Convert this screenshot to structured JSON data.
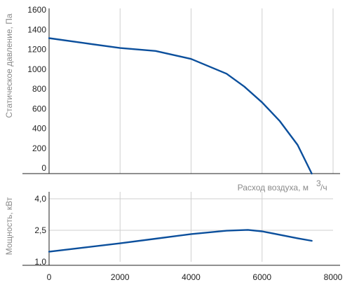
{
  "chart_data": [
    {
      "type": "line",
      "title": "",
      "xlabel": "Расход воздуха, м",
      "xlabel_exponent": "3",
      "xlabel_unit_suffix": "/ч",
      "ylabel": "Статическое давление, Па",
      "xlim": [
        0,
        8000
      ],
      "ylim": [
        0,
        1600
      ],
      "x_ticks": [
        0,
        2000,
        4000,
        6000,
        8000
      ],
      "y_ticks": [
        "0",
        "200",
        "400",
        "600",
        "800",
        "1000",
        "1200",
        "1400",
        "1600"
      ],
      "grid": true,
      "line_color": "#0b4f9c",
      "series": [
        {
          "x": [
            0,
            1000,
            2000,
            3000,
            4000,
            5000,
            5500,
            6000,
            6500,
            7000,
            7400
          ],
          "y": [
            1370,
            1320,
            1270,
            1240,
            1160,
            1010,
            880,
            720,
            530,
            290,
            0
          ]
        }
      ]
    },
    {
      "type": "line",
      "title": "",
      "xlabel": "",
      "ylabel": "Мощность, кВт",
      "xlim": [
        0,
        8000
      ],
      "ylim": [
        1.0,
        4.0
      ],
      "x_ticks": [
        "0",
        "2000",
        "4000",
        "6000",
        "8000"
      ],
      "y_ticks": [
        "1,0",
        "2,5",
        "4,0"
      ],
      "grid": true,
      "line_color": "#0b4f9c",
      "series": [
        {
          "x": [
            0,
            1000,
            2000,
            3000,
            4000,
            5000,
            5600,
            6000,
            7000,
            7400
          ],
          "y": [
            1.48,
            1.68,
            1.88,
            2.1,
            2.32,
            2.48,
            2.52,
            2.45,
            2.12,
            2.0
          ]
        }
      ]
    }
  ]
}
